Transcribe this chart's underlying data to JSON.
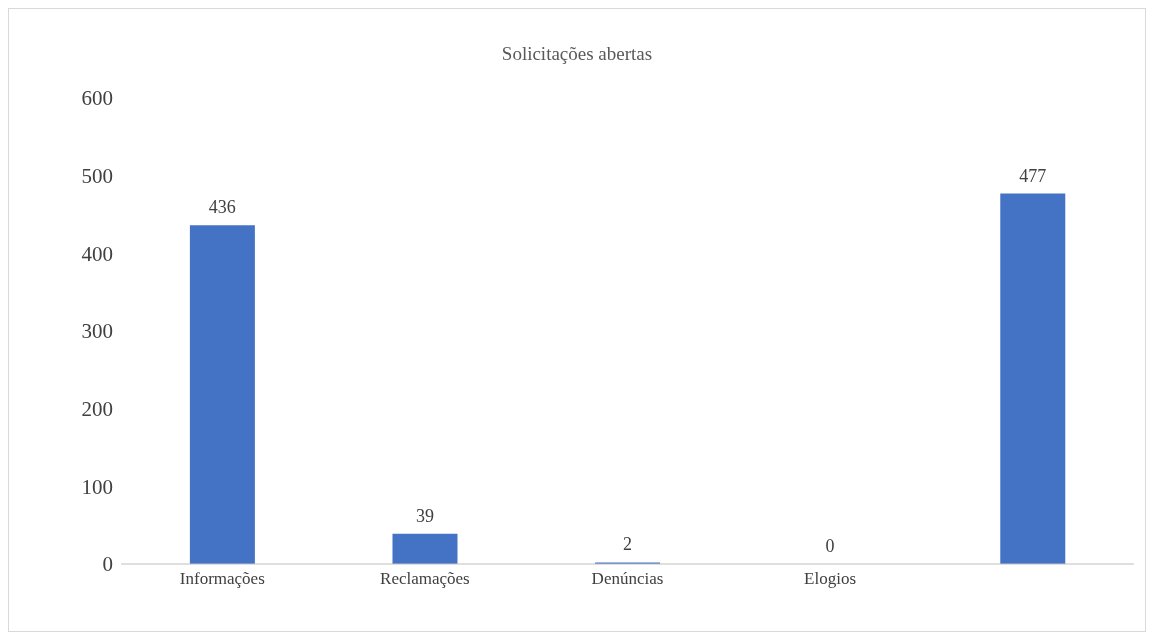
{
  "chart_data": {
    "type": "bar",
    "title": "Solicitações abertas",
    "categories": [
      "Informações",
      "Reclamações",
      "Denúncias",
      "Elogios",
      null
    ],
    "values": [
      436,
      39,
      2,
      0,
      477
    ],
    "color": "#4472c4",
    "ylim": [
      0,
      600
    ],
    "yticks": [
      0,
      100,
      200,
      300,
      400,
      500,
      600
    ],
    "grid": false,
    "data_labels": true
  }
}
